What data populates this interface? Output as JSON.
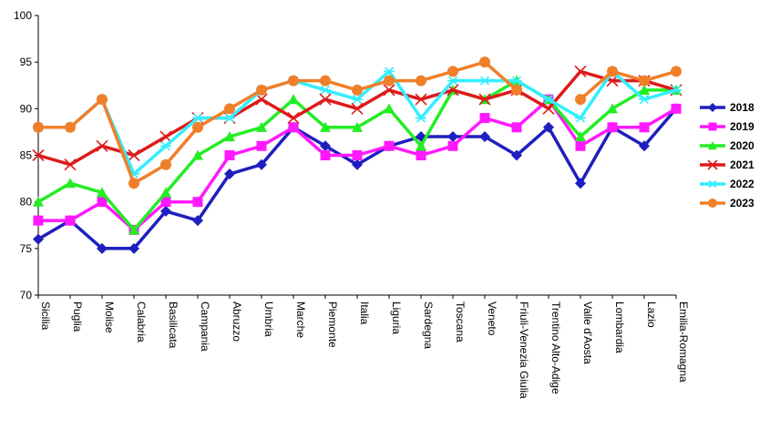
{
  "chart_data": {
    "type": "line",
    "title": "",
    "xlabel": "",
    "ylabel": "",
    "ylim": [
      70,
      100
    ],
    "yticks": [
      70,
      75,
      80,
      85,
      90,
      95,
      100
    ],
    "grid": false,
    "legend_position": "right",
    "categories": [
      "Sicilia",
      "Puglia",
      "Molise",
      "Calabria",
      "Basilicata",
      "Campania",
      "Abruzzo",
      "Umbria",
      "Marche",
      "Piemonte",
      "Italia",
      "Liguria",
      "Sardegna",
      "Toscana",
      "Veneto",
      "Friuli-Venezia Giulia",
      "Trentino Alto-Adige",
      "Valle d'Aosta",
      "Lombardia",
      "Lazio",
      "Emilia-Romagna"
    ],
    "series": [
      {
        "name": "2018",
        "color": "#1f1fbf",
        "marker": "diamond",
        "values": [
          76,
          78,
          75,
          75,
          79,
          78,
          83,
          84,
          88,
          86,
          84,
          86,
          87,
          87,
          87,
          85,
          88,
          82,
          88,
          86,
          90
        ]
      },
      {
        "name": "2019",
        "color": "#ff19ff",
        "marker": "square",
        "values": [
          78,
          78,
          80,
          77,
          80,
          80,
          85,
          86,
          88,
          85,
          85,
          86,
          85,
          86,
          89,
          88,
          91,
          86,
          88,
          88,
          90
        ]
      },
      {
        "name": "2020",
        "color": "#22ee22",
        "marker": "triangle",
        "values": [
          80,
          82,
          81,
          77,
          81,
          85,
          87,
          88,
          91,
          88,
          88,
          90,
          86,
          92,
          91,
          93,
          91,
          87,
          90,
          92,
          92
        ]
      },
      {
        "name": "2021",
        "color": "#dd1a1a",
        "marker": "x",
        "values": [
          85,
          84,
          86,
          85,
          87,
          89,
          89,
          91,
          89,
          91,
          90,
          92,
          91,
          92,
          91,
          92,
          90,
          94,
          93,
          93,
          92
        ]
      },
      {
        "name": "2022",
        "color": "#33eeff",
        "marker": "star",
        "values": [
          88,
          88,
          91,
          83,
          86,
          89,
          89,
          92,
          93,
          92,
          91,
          94,
          89,
          93,
          93,
          93,
          91,
          89,
          94,
          91,
          92
        ]
      },
      {
        "name": "2023",
        "color": "#f07f2a",
        "marker": "circle",
        "values": [
          88,
          88,
          91,
          82,
          84,
          88,
          90,
          92,
          93,
          93,
          92,
          93,
          93,
          94,
          95,
          92,
          null,
          91,
          94,
          93,
          94
        ]
      }
    ]
  }
}
